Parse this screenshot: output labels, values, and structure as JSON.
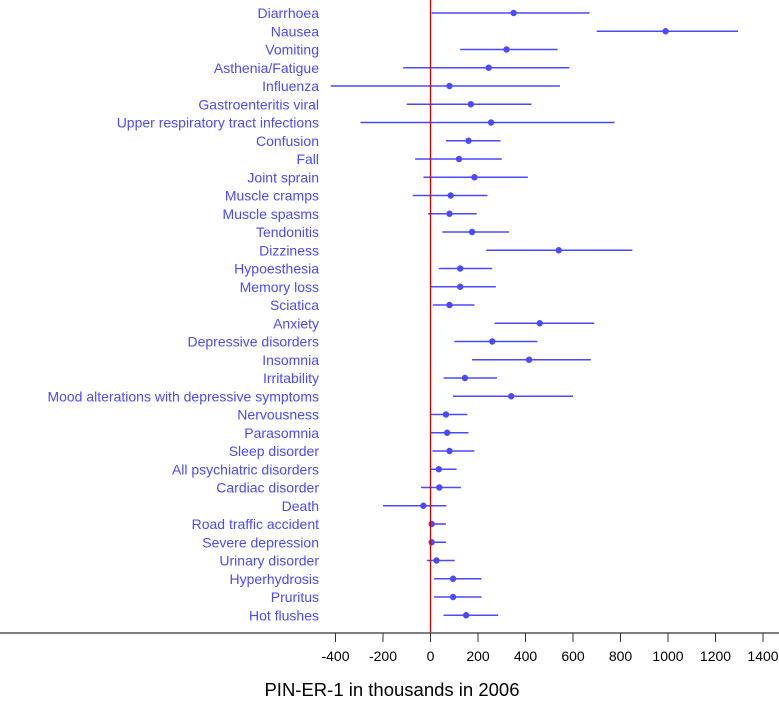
{
  "chart_data": {
    "type": "forest",
    "title": "",
    "xlabel": "PIN-ER-1 in thousands in 2006",
    "ylabel": "",
    "xlim": [
      -420,
      1420
    ],
    "xticks": [
      -400,
      -200,
      0,
      200,
      400,
      600,
      800,
      1000,
      1200,
      1400
    ],
    "xtick_labels": [
      "-400",
      "-200",
      "0",
      "200",
      "400",
      "600",
      "800",
      "1000",
      "1200",
      "1400"
    ],
    "reference_line": 0,
    "grid": false,
    "colors": {
      "marks": "#4a4aff",
      "reference": "#cc0000",
      "axis": "#555555",
      "labels": "#4a4aff"
    },
    "series": [
      {
        "name": "Diarrhoea",
        "estimate": 350,
        "lower": 5,
        "upper": 670
      },
      {
        "name": "Nausea",
        "estimate": 990,
        "lower": 700,
        "upper": 1295
      },
      {
        "name": "Vomiting",
        "estimate": 320,
        "lower": 125,
        "upper": 535
      },
      {
        "name": "Asthenia/Fatigue",
        "estimate": 245,
        "lower": -115,
        "upper": 585
      },
      {
        "name": "Influenza",
        "estimate": 80,
        "lower": -420,
        "upper": 545
      },
      {
        "name": "Gastroenteritis viral",
        "estimate": 170,
        "lower": -100,
        "upper": 425
      },
      {
        "name": "Upper respiratory tract infections",
        "estimate": 255,
        "lower": -295,
        "upper": 775
      },
      {
        "name": "Confusion",
        "estimate": 160,
        "lower": 65,
        "upper": 295
      },
      {
        "name": "Fall",
        "estimate": 120,
        "lower": -65,
        "upper": 300
      },
      {
        "name": "Joint sprain",
        "estimate": 185,
        "lower": -30,
        "upper": 410
      },
      {
        "name": "Muscle cramps",
        "estimate": 85,
        "lower": -75,
        "upper": 240
      },
      {
        "name": "Muscle spasms",
        "estimate": 80,
        "lower": -10,
        "upper": 195
      },
      {
        "name": "Tendonitis",
        "estimate": 175,
        "lower": 50,
        "upper": 330
      },
      {
        "name": "Dizziness",
        "estimate": 540,
        "lower": 235,
        "upper": 850
      },
      {
        "name": "Hypoesthesia",
        "estimate": 125,
        "lower": 35,
        "upper": 260
      },
      {
        "name": "Memory loss",
        "estimate": 125,
        "lower": 0,
        "upper": 275
      },
      {
        "name": "Sciatica",
        "estimate": 80,
        "lower": 10,
        "upper": 185
      },
      {
        "name": "Anxiety",
        "estimate": 460,
        "lower": 270,
        "upper": 690
      },
      {
        "name": "Depressive disorders",
        "estimate": 260,
        "lower": 100,
        "upper": 450
      },
      {
        "name": "Insomnia",
        "estimate": 415,
        "lower": 175,
        "upper": 675
      },
      {
        "name": "Irritability",
        "estimate": 145,
        "lower": 55,
        "upper": 280
      },
      {
        "name": "Mood alterations with depressive symptoms",
        "estimate": 340,
        "lower": 95,
        "upper": 600
      },
      {
        "name": "Nervousness",
        "estimate": 65,
        "lower": 0,
        "upper": 155
      },
      {
        "name": "Parasomnia",
        "estimate": 70,
        "lower": 0,
        "upper": 160
      },
      {
        "name": "Sleep disorder",
        "estimate": 80,
        "lower": 8,
        "upper": 185
      },
      {
        "name": "All psychiatric disorders",
        "estimate": 35,
        "lower": 0,
        "upper": 110
      },
      {
        "name": "Cardiac disorder",
        "estimate": 37,
        "lower": -40,
        "upper": 128
      },
      {
        "name": "Death",
        "estimate": -30,
        "lower": -200,
        "upper": 67
      },
      {
        "name": "Road traffic accident",
        "estimate": 5,
        "lower": 0,
        "upper": 65
      },
      {
        "name": "Severe depression",
        "estimate": 5,
        "lower": 0,
        "upper": 65
      },
      {
        "name": "Urinary disorder",
        "estimate": 25,
        "lower": -15,
        "upper": 102
      },
      {
        "name": "Hyperhydrosis",
        "estimate": 95,
        "lower": 15,
        "upper": 215
      },
      {
        "name": "Pruritus",
        "estimate": 95,
        "lower": 15,
        "upper": 215
      },
      {
        "name": "Hot flushes",
        "estimate": 150,
        "lower": 55,
        "upper": 285
      }
    ]
  }
}
